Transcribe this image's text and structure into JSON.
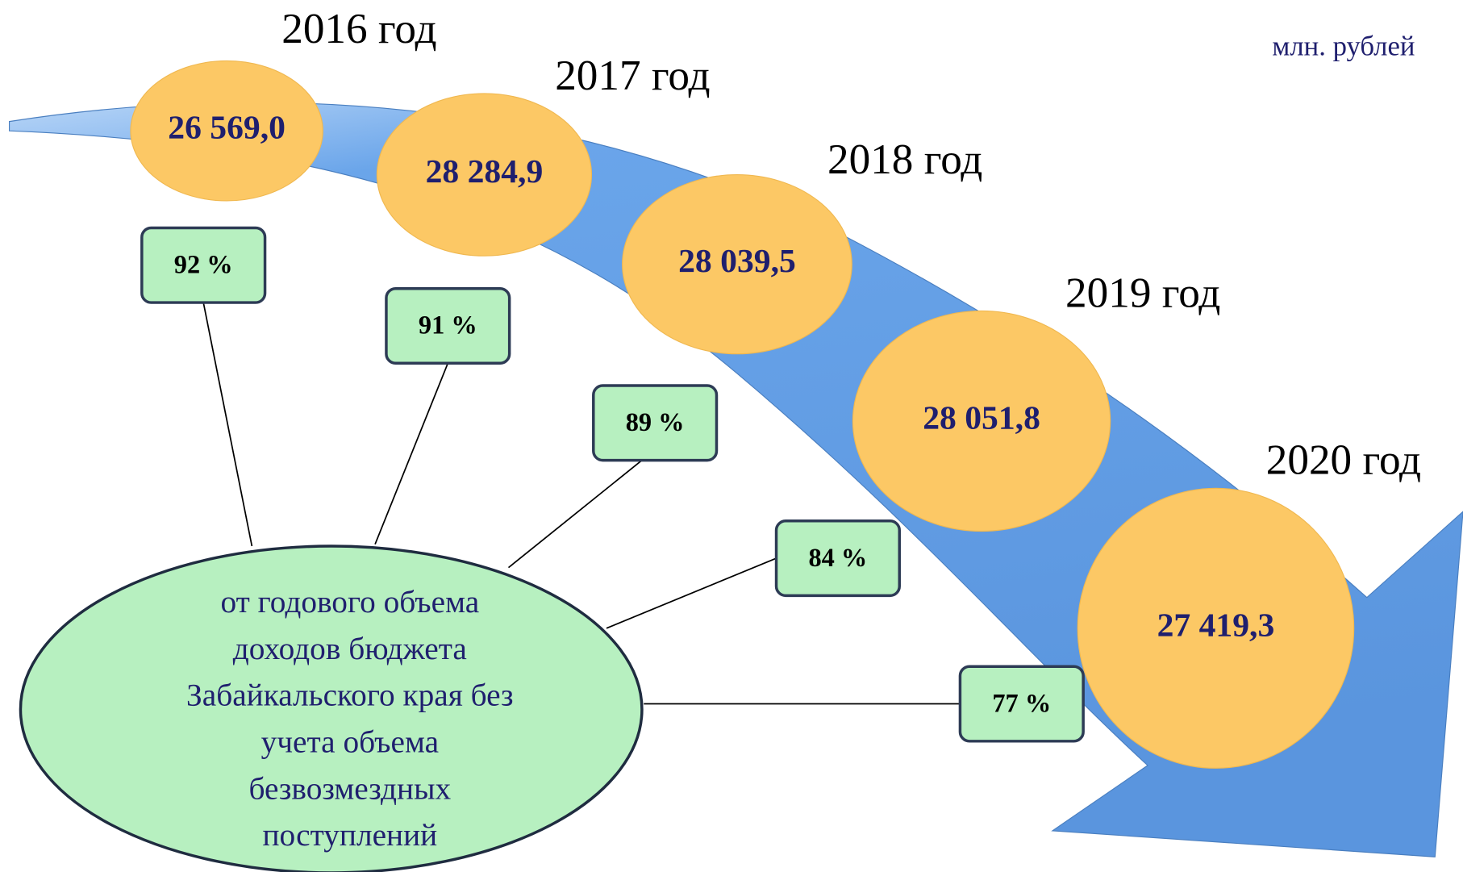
{
  "unit": "млн. рублей",
  "years": [
    {
      "year": "2016 год",
      "value": "26 569,0",
      "share": "92 %"
    },
    {
      "year": "2017 год",
      "value": "28 284,9",
      "share": "91 %"
    },
    {
      "year": "2018 год",
      "value": "28 039,5",
      "share": "89 %"
    },
    {
      "year": "2019 год",
      "value": "28 051,8",
      "share": "84 %"
    },
    {
      "year": "2020 год",
      "value": "27 419,3",
      "share": "77 %"
    }
  ],
  "note": [
    "от годового объема",
    "доходов бюджета",
    "Забайкальского края без",
    "учета объема",
    "безвозмездных",
    "поступлений"
  ]
}
